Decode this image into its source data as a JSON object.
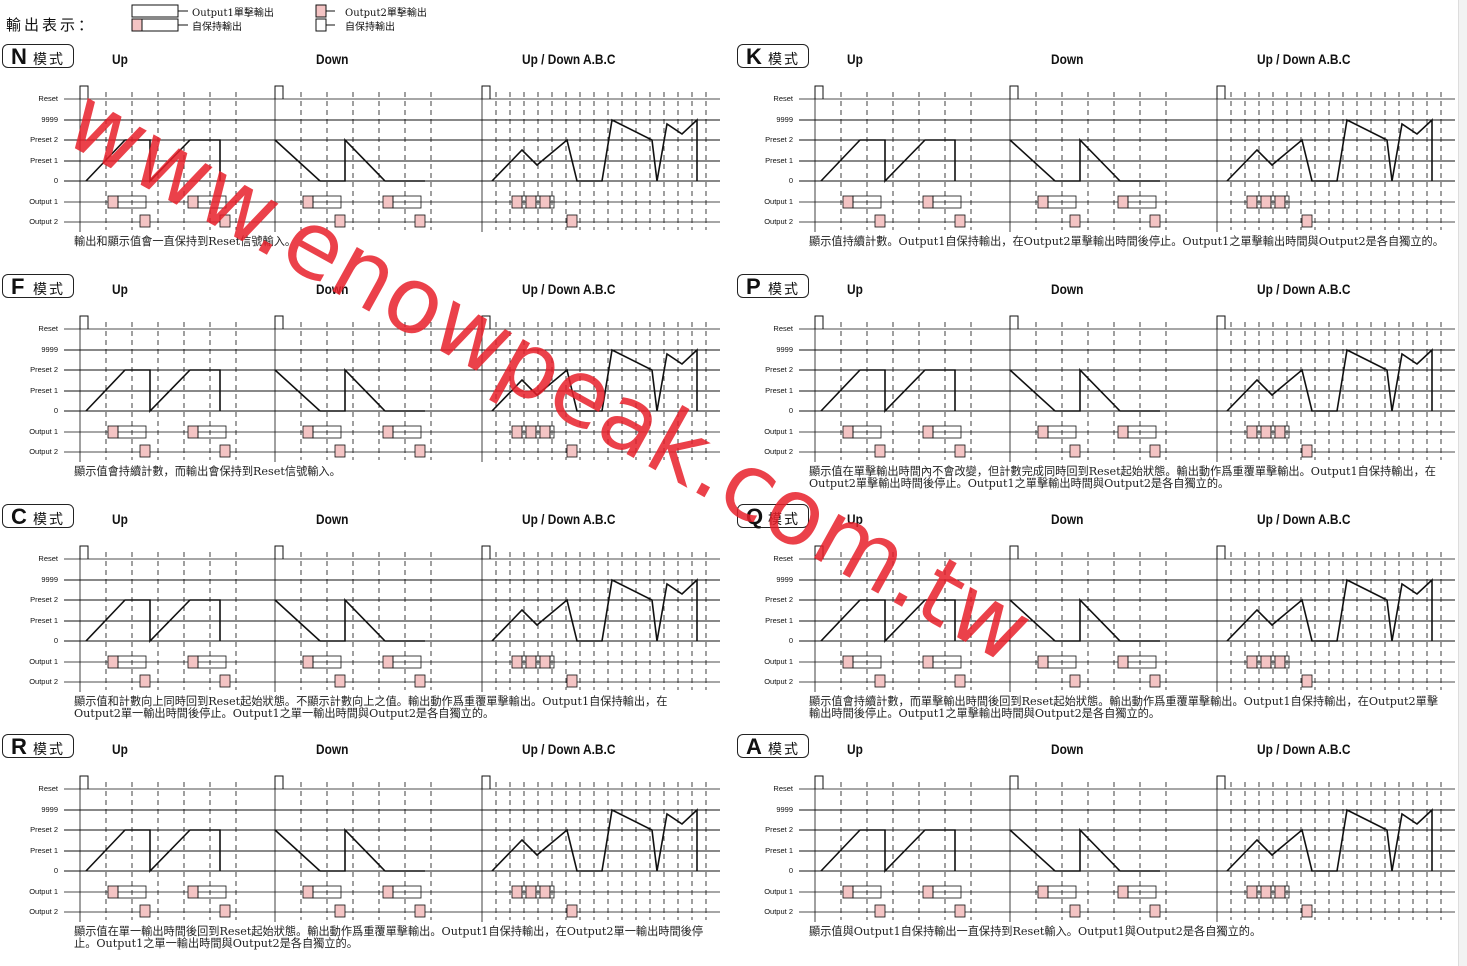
{
  "legend": {
    "title": "輸出表示：",
    "output1_single": "Output1單擊輸出",
    "self_hold": "自保持輸出",
    "output2_single": "Output2單擊輸出",
    "self_hold2": "自保持輸出"
  },
  "row_labels": [
    "Reset",
    "9999",
    "Preset 2",
    "Preset 1",
    "0",
    "Output 1",
    "Output 2"
  ],
  "columns": [
    "Up",
    "Down",
    "Up / Down A.B.C"
  ],
  "mode_word": "模式",
  "panels": [
    {
      "letter": "N",
      "desc": "輸出和顯示值會一直保持到Reset信號輸入。"
    },
    {
      "letter": "K",
      "desc": "顯示值持續計數。Output1自保持輸出，在Output2單擊輸出時間後停止。Output1之單擊輸出時間與Output2是各自獨立的。"
    },
    {
      "letter": "F",
      "desc": "顯示值會持續計數，而輸出會保持到Reset信號輸入。"
    },
    {
      "letter": "P",
      "desc": "顯示值在單擊輸出時間內不會改變，但計數完成同時回到Reset起始狀態。輸出動作爲重覆單擊輸出。Output1自保持輸出，在Output2單擊輸出時間後停止。Output1之單擊輸出時間與Output2是各自獨立的。"
    },
    {
      "letter": "C",
      "desc": "顯示值和計數向上同時回到Reset起始狀態。不顯示計數向上之值。輸出動作爲重覆單擊輸出。Output1自保持輸出，在Output2單一輸出時間後停止。Output1之單一輸出時間與Output2是各自獨立的。"
    },
    {
      "letter": "Q",
      "desc": "顯示值會持續計數，而單擊輸出時間後回到Reset起始狀態。輸出動作爲重覆單擊輸出。Output1自保持輸出，在Output2單擊輸出時間後停止。Output1之單擊輸出時間與Output2是各自獨立的。"
    },
    {
      "letter": "R",
      "desc": "顯示值在單一輸出時間後回到Reset起始狀態。輸出動作爲重覆單擊輸出。Output1自保持輸出，在Output2單一輸出時間後停止。Output1之單一輸出時間與Output2是各自獨立的。"
    },
    {
      "letter": "A",
      "desc": "顯示值與Output1自保持輸出一直保持到Reset輸入。Output1與Output2是各自獨立的。"
    }
  ],
  "colors": {
    "pulse_fill": "#f4c4c4",
    "watermark": "#e8202a",
    "line": "#111111"
  },
  "watermark_text": "www.enowpeak.com.tw"
}
